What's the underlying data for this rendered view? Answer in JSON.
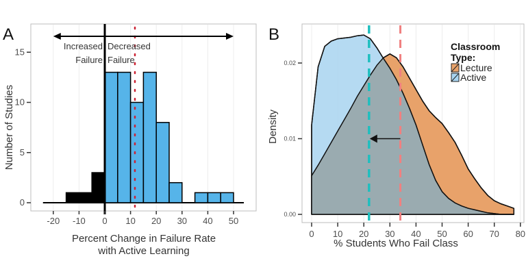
{
  "chart_data": [
    {
      "type": "bar",
      "panel_label": "A",
      "xlabel": "Percent Change in Failure Rate",
      "xlabel2": "with Active Learning",
      "ylabel": "Number of Studies",
      "xlim": [
        -25,
        55
      ],
      "ylim": [
        0,
        17.5
      ],
      "xticks": [
        "-20",
        "-10",
        "0",
        "10",
        "20",
        "30",
        "40",
        "50"
      ],
      "yticks": [
        "0",
        "5",
        "10",
        "15"
      ],
      "grid": true,
      "bins": [
        {
          "from": -15,
          "to": -5,
          "value": 1,
          "group": "increased"
        },
        {
          "from": -5,
          "to": 0,
          "value": 3,
          "group": "increased"
        },
        {
          "from": 0,
          "to": 5,
          "value": 13,
          "group": "decreased"
        },
        {
          "from": 5,
          "to": 10,
          "value": 13,
          "group": "decreased"
        },
        {
          "from": 10,
          "to": 15,
          "value": 10,
          "group": "decreased"
        },
        {
          "from": 15,
          "to": 20,
          "value": 13,
          "group": "decreased"
        },
        {
          "from": 20,
          "to": 25,
          "value": 8,
          "group": "decreased"
        },
        {
          "from": 25,
          "to": 30,
          "value": 2,
          "group": "decreased"
        },
        {
          "from": 35,
          "to": 40,
          "value": 1,
          "group": "decreased"
        },
        {
          "from": 40,
          "to": 45,
          "value": 1,
          "group": "decreased"
        },
        {
          "from": 45,
          "to": 50,
          "value": 1,
          "group": "decreased"
        }
      ],
      "mean_line": 11.7,
      "annotations": {
        "left_line1": "Increased",
        "left_line2": "Failure",
        "right_line1": "Decreased",
        "right_line2": "Failure"
      },
      "arrow_range": [
        -20,
        50
      ],
      "colors": {
        "decreased": "#56b4e9",
        "increased": "#000000",
        "mean": "#cc2233"
      }
    },
    {
      "type": "area",
      "panel_label": "B",
      "xlabel": "% Students Who Fail Class",
      "ylabel": "Density",
      "xlim": [
        0,
        80
      ],
      "ylim": [
        0,
        0.025
      ],
      "xticks": [
        "0",
        "10",
        "20",
        "30",
        "40",
        "50",
        "60",
        "70",
        "80"
      ],
      "yticks": [
        "0.00",
        "0.01",
        "0.02"
      ],
      "grid": true,
      "legend": {
        "title_line1": "Classroom",
        "title_line2": "Type:",
        "position": "top-right"
      },
      "x": [
        0,
        2.5,
        5,
        7.5,
        10,
        12.5,
        15,
        17.5,
        20,
        22.5,
        25,
        27.5,
        30,
        32.5,
        35,
        37.5,
        40,
        42.5,
        45,
        47.5,
        50,
        52.5,
        55,
        57.5,
        60,
        62.5,
        65,
        67.5,
        70,
        72.5,
        75,
        77.5
      ],
      "series": [
        {
          "name": "Lecture",
          "color": "#e8a26a",
          "mean": 34,
          "mean_color": "#f08080",
          "values": [
            0.0051,
            0.0065,
            0.008,
            0.0095,
            0.011,
            0.0125,
            0.014,
            0.0156,
            0.017,
            0.0184,
            0.0197,
            0.0207,
            0.0212,
            0.0207,
            0.0195,
            0.018,
            0.0165,
            0.015,
            0.0137,
            0.0128,
            0.012,
            0.0108,
            0.0095,
            0.0078,
            0.006,
            0.0047,
            0.0035,
            0.0025,
            0.0018,
            0.0014,
            0.0011,
            0.0008
          ]
        },
        {
          "name": "Active",
          "color": "#a8d4f0",
          "mean": 22,
          "mean_color": "#1ebfbf",
          "values": [
            0.0118,
            0.0195,
            0.0222,
            0.0229,
            0.0232,
            0.0233,
            0.0234,
            0.0236,
            0.0237,
            0.0232,
            0.022,
            0.0206,
            0.0193,
            0.0178,
            0.016,
            0.014,
            0.0118,
            0.0092,
            0.0066,
            0.0045,
            0.003,
            0.0021,
            0.0015,
            0.0011,
            0.0008,
            0.0006,
            0.0004,
            0.0002,
            0.0001,
            0.0,
            0.0,
            0.0
          ]
        }
      ],
      "arrow": {
        "from_x": 34,
        "to_x": 22,
        "y": 0.01
      }
    }
  ]
}
